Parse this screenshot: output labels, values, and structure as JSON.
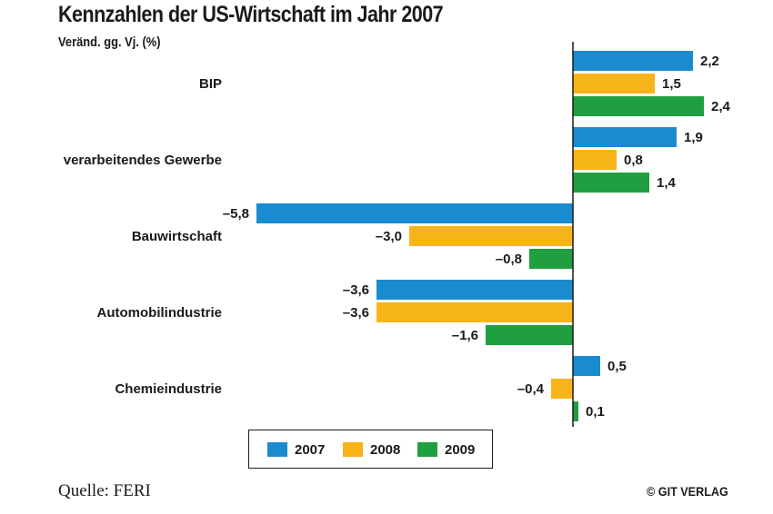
{
  "title": "Kennzahlen der US-Wirtschaft im Jahr 2007",
  "subtitle": "Veränd. gg. Vj. (%)",
  "source": "Quelle: FERI",
  "credit": "© GIT VERLAG",
  "colors": {
    "2007": "#1b8bcf",
    "2008": "#f7b418",
    "2009": "#1f9f3f"
  },
  "chart_data": {
    "type": "bar",
    "orientation": "horizontal",
    "title": "Kennzahlen der US-Wirtschaft im Jahr 2007",
    "ylabel": "Veränd. gg. Vj. (%)",
    "categories": [
      "BIP",
      "verarbeitendes Gewerbe",
      "Bauwirtschaft",
      "Automobilindustrie",
      "Chemieindustrie"
    ],
    "series": [
      {
        "name": "2007",
        "values": [
          2.2,
          1.9,
          -5.8,
          -3.6,
          0.5
        ],
        "labels": [
          "2,2",
          "1,9",
          "–5,8",
          "–3,6",
          "0,5"
        ]
      },
      {
        "name": "2008",
        "values": [
          1.5,
          0.8,
          -3.0,
          -3.6,
          -0.4
        ],
        "labels": [
          "1,5",
          "0,8",
          "–3,0",
          "–3,6",
          "–0,4"
        ]
      },
      {
        "name": "2009",
        "values": [
          2.4,
          1.4,
          -0.8,
          -1.6,
          0.1
        ],
        "labels": [
          "2,4",
          "1,4",
          "–0,8",
          "–1,6",
          "0,1"
        ]
      }
    ],
    "grid": false,
    "legend_position": "bottom"
  }
}
